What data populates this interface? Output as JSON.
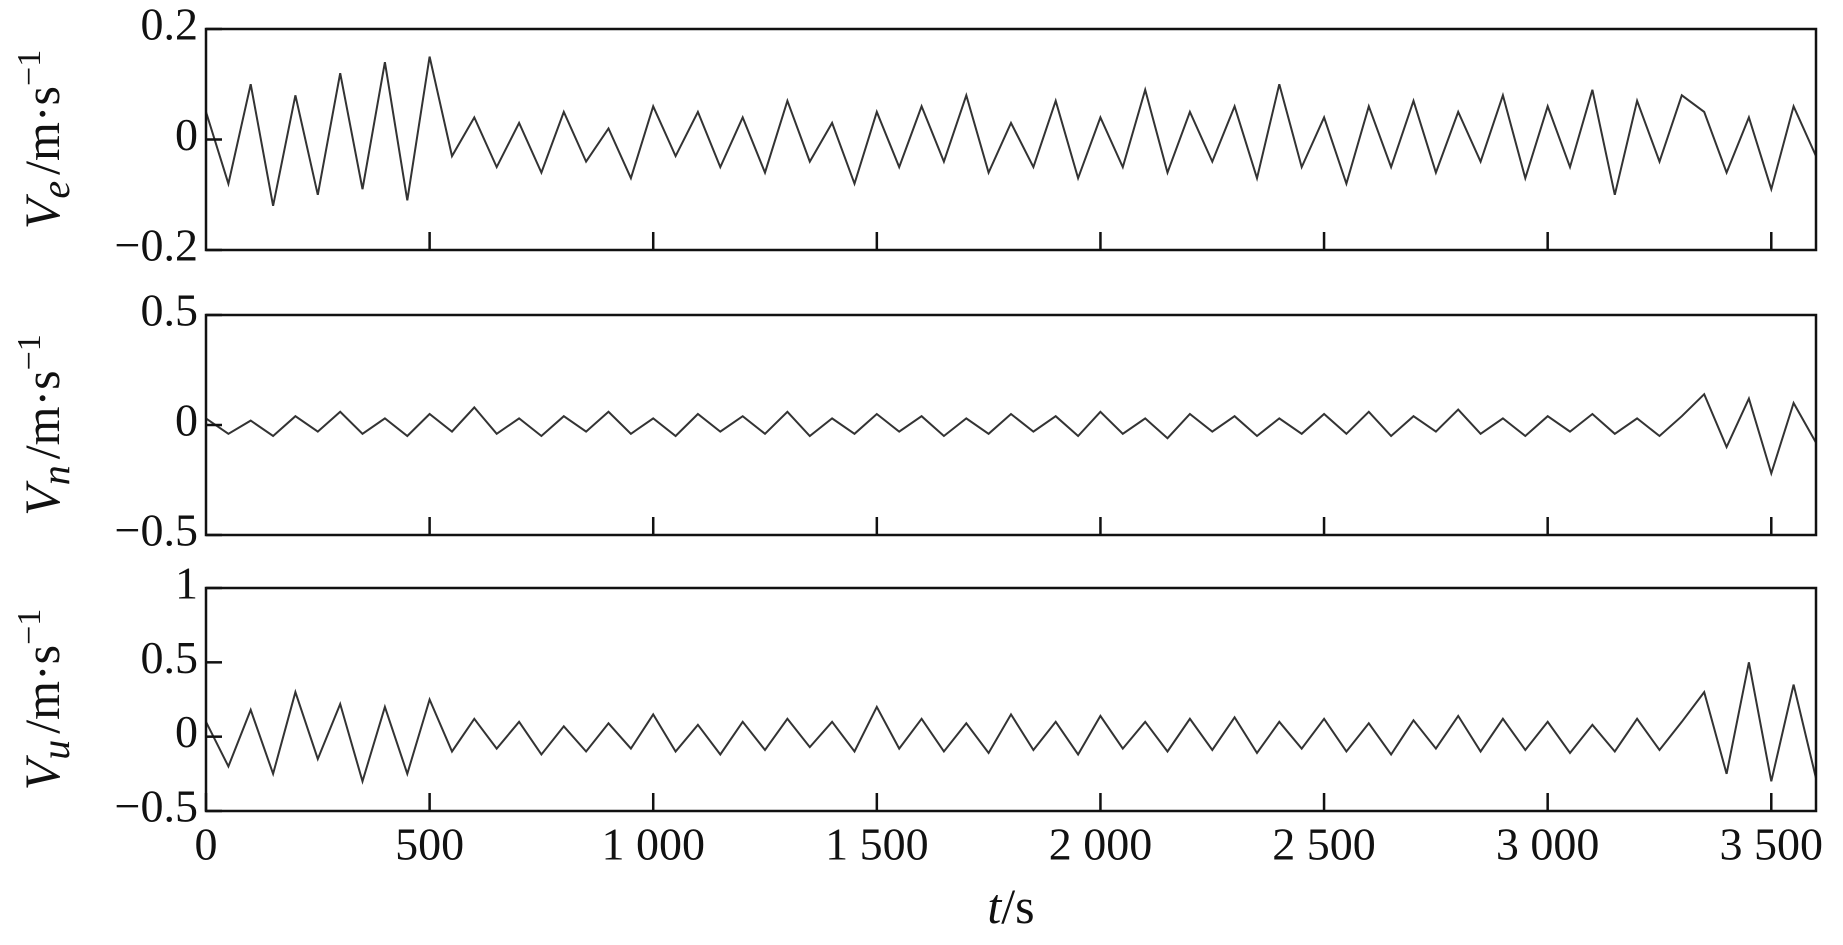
{
  "chart_data": [
    {
      "type": "line",
      "ylabel": {
        "symbol": "V",
        "subscript": "e",
        "unit": "/m·s",
        "exponent": "−1"
      },
      "x": [
        0,
        50,
        100,
        150,
        200,
        250,
        300,
        350,
        400,
        450,
        500,
        550,
        600,
        650,
        700,
        750,
        800,
        850,
        900,
        950,
        1000,
        1050,
        1100,
        1150,
        1200,
        1250,
        1300,
        1350,
        1400,
        1450,
        1500,
        1550,
        1600,
        1650,
        1700,
        1750,
        1800,
        1850,
        1900,
        1950,
        2000,
        2050,
        2100,
        2150,
        2200,
        2250,
        2300,
        2350,
        2400,
        2450,
        2500,
        2550,
        2600,
        2650,
        2700,
        2750,
        2800,
        2850,
        2900,
        2950,
        3000,
        3050,
        3100,
        3150,
        3200,
        3250,
        3300,
        3350,
        3400,
        3450,
        3500,
        3550,
        3600
      ],
      "series": [
        {
          "color": "#333333",
          "values": [
            0.05,
            -0.08,
            0.1,
            -0.12,
            0.08,
            -0.1,
            0.12,
            -0.09,
            0.14,
            -0.11,
            0.15,
            -0.03,
            0.04,
            -0.05,
            0.03,
            -0.06,
            0.05,
            -0.04,
            0.02,
            -0.07,
            0.06,
            -0.03,
            0.05,
            -0.05,
            0.04,
            -0.06,
            0.07,
            -0.04,
            0.03,
            -0.08,
            0.05,
            -0.05,
            0.06,
            -0.04,
            0.08,
            -0.06,
            0.03,
            -0.05,
            0.07,
            -0.07,
            0.04,
            -0.05,
            0.09,
            -0.06,
            0.05,
            -0.04,
            0.06,
            -0.07,
            0.1,
            -0.05,
            0.04,
            -0.08,
            0.06,
            -0.05,
            0.07,
            -0.06,
            0.05,
            -0.04,
            0.08,
            -0.07,
            0.06,
            -0.05,
            0.09,
            -0.1,
            0.07,
            -0.04,
            0.08,
            0.05,
            -0.06,
            0.04,
            -0.09,
            0.06,
            -0.03
          ]
        }
      ],
      "xlim": [
        0,
        3600
      ],
      "xticks": [
        500,
        1000,
        1500,
        2000,
        2500,
        3000,
        3500
      ],
      "ylim": [
        -0.2,
        0.2
      ],
      "yticks": [
        {
          "value": -0.2,
          "label": "−0.2"
        },
        0,
        0.2
      ]
    },
    {
      "type": "line",
      "ylabel": {
        "symbol": "V",
        "subscript": "n",
        "unit": "/m·s",
        "exponent": "−1"
      },
      "x": [
        0,
        50,
        100,
        150,
        200,
        250,
        300,
        350,
        400,
        450,
        500,
        550,
        600,
        650,
        700,
        750,
        800,
        850,
        900,
        950,
        1000,
        1050,
        1100,
        1150,
        1200,
        1250,
        1300,
        1350,
        1400,
        1450,
        1500,
        1550,
        1600,
        1650,
        1700,
        1750,
        1800,
        1850,
        1900,
        1950,
        2000,
        2050,
        2100,
        2150,
        2200,
        2250,
        2300,
        2350,
        2400,
        2450,
        2500,
        2550,
        2600,
        2650,
        2700,
        2750,
        2800,
        2850,
        2900,
        2950,
        3000,
        3050,
        3100,
        3150,
        3200,
        3250,
        3300,
        3350,
        3400,
        3450,
        3500,
        3550,
        3600
      ],
      "series": [
        {
          "color": "#333333",
          "values": [
            0.03,
            -0.04,
            0.02,
            -0.05,
            0.04,
            -0.03,
            0.06,
            -0.04,
            0.03,
            -0.05,
            0.05,
            -0.03,
            0.08,
            -0.04,
            0.03,
            -0.05,
            0.04,
            -0.03,
            0.06,
            -0.04,
            0.03,
            -0.05,
            0.05,
            -0.03,
            0.04,
            -0.04,
            0.06,
            -0.05,
            0.03,
            -0.04,
            0.05,
            -0.03,
            0.04,
            -0.05,
            0.03,
            -0.04,
            0.05,
            -0.03,
            0.04,
            -0.05,
            0.06,
            -0.04,
            0.03,
            -0.06,
            0.05,
            -0.03,
            0.04,
            -0.05,
            0.03,
            -0.04,
            0.05,
            -0.04,
            0.06,
            -0.05,
            0.04,
            -0.03,
            0.07,
            -0.04,
            0.03,
            -0.05,
            0.04,
            -0.03,
            0.05,
            -0.04,
            0.03,
            -0.05,
            0.04,
            0.14,
            -0.1,
            0.12,
            -0.22,
            0.1,
            -0.08
          ]
        }
      ],
      "xlim": [
        0,
        3600
      ],
      "xticks": [
        500,
        1000,
        1500,
        2000,
        2500,
        3000,
        3500
      ],
      "ylim": [
        -0.5,
        0.5
      ],
      "yticks": [
        {
          "value": -0.5,
          "label": "−0.5"
        },
        0,
        0.5
      ]
    },
    {
      "type": "line",
      "ylabel": {
        "symbol": "V",
        "subscript": "u",
        "unit": "/m·s",
        "exponent": "−1"
      },
      "xlabel": {
        "symbol": "t",
        "unit": "/s"
      },
      "x": [
        0,
        50,
        100,
        150,
        200,
        250,
        300,
        350,
        400,
        450,
        500,
        550,
        600,
        650,
        700,
        750,
        800,
        850,
        900,
        950,
        1000,
        1050,
        1100,
        1150,
        1200,
        1250,
        1300,
        1350,
        1400,
        1450,
        1500,
        1550,
        1600,
        1650,
        1700,
        1750,
        1800,
        1850,
        1900,
        1950,
        2000,
        2050,
        2100,
        2150,
        2200,
        2250,
        2300,
        2350,
        2400,
        2450,
        2500,
        2550,
        2600,
        2650,
        2700,
        2750,
        2800,
        2850,
        2900,
        2950,
        3000,
        3050,
        3100,
        3150,
        3200,
        3250,
        3300,
        3350,
        3400,
        3450,
        3500,
        3550,
        3600
      ],
      "series": [
        {
          "color": "#333333",
          "values": [
            0.1,
            -0.2,
            0.18,
            -0.25,
            0.3,
            -0.15,
            0.22,
            -0.3,
            0.2,
            -0.25,
            0.25,
            -0.1,
            0.12,
            -0.08,
            0.1,
            -0.12,
            0.07,
            -0.1,
            0.09,
            -0.08,
            0.15,
            -0.1,
            0.08,
            -0.12,
            0.1,
            -0.09,
            0.12,
            -0.07,
            0.1,
            -0.1,
            0.2,
            -0.08,
            0.12,
            -0.1,
            0.09,
            -0.11,
            0.15,
            -0.09,
            0.1,
            -0.12,
            0.14,
            -0.08,
            0.1,
            -0.1,
            0.12,
            -0.09,
            0.13,
            -0.11,
            0.1,
            -0.08,
            0.12,
            -0.1,
            0.09,
            -0.12,
            0.11,
            -0.08,
            0.14,
            -0.1,
            0.12,
            -0.09,
            0.1,
            -0.11,
            0.08,
            -0.1,
            0.12,
            -0.09,
            0.1,
            0.3,
            -0.25,
            0.5,
            -0.3,
            0.35,
            -0.28
          ]
        }
      ],
      "xlim": [
        0,
        3600
      ],
      "xticks": [
        0,
        500,
        {
          "value": 1000,
          "label": "1 000"
        },
        {
          "value": 1500,
          "label": "1 500"
        },
        {
          "value": 2000,
          "label": "2 000"
        },
        {
          "value": 2500,
          "label": "2 500"
        },
        {
          "value": 3000,
          "label": "3 000"
        },
        {
          "value": 3500,
          "label": "3 500"
        }
      ],
      "ylim": [
        -0.5,
        1
      ],
      "yticks": [
        {
          "value": -0.5,
          "label": "−0.5"
        },
        0,
        0.5,
        1
      ]
    }
  ]
}
